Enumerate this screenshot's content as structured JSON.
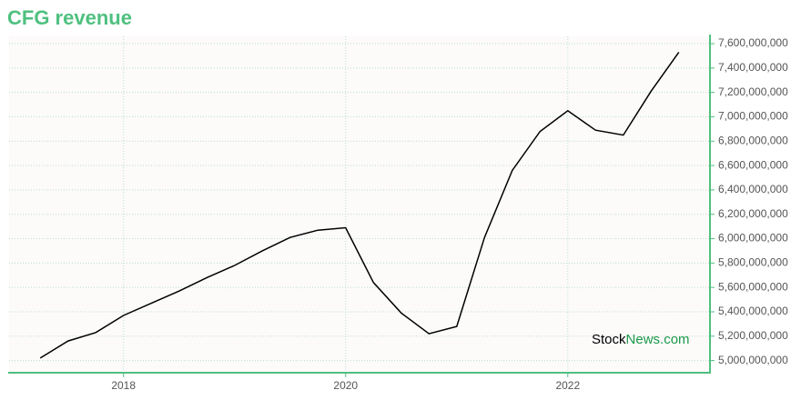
{
  "chart_data": {
    "type": "line",
    "title": "CFG revenue",
    "x": [
      2017.25,
      2017.5,
      2017.75,
      2018,
      2018.25,
      2018.5,
      2018.75,
      2019,
      2019.25,
      2019.5,
      2019.75,
      2020,
      2020.25,
      2020.5,
      2020.75,
      2021,
      2021.25,
      2021.5,
      2021.75,
      2022,
      2022.25,
      2022.5,
      2022.75,
      2023
    ],
    "series": [
      {
        "color": "#000000",
        "values": [
          5020000000,
          5160000000,
          5230000000,
          5370000000,
          5470000000,
          5570000000,
          5680000000,
          5780000000,
          5900000000,
          6010000000,
          6070000000,
          6090000000,
          5640000000,
          5390000000,
          5220000000,
          5280000000,
          6010000000,
          6560000000,
          6880000000,
          7050000000,
          6890000000,
          6850000000,
          7210000000,
          7530000000
        ]
      }
    ],
    "xlim": [
      2016.97,
      2023.28
    ],
    "xticks": [
      2018,
      2020,
      2022
    ],
    "ylim": [
      4900000000,
      7660000000
    ],
    "yticks": [
      {
        "value": 5000000000,
        "label": "5,000,000,000"
      },
      {
        "value": 5200000000,
        "label": "5,200,000,000"
      },
      {
        "value": 5400000000,
        "label": "5,400,000,000"
      },
      {
        "value": 5600000000,
        "label": "5,600,000,000"
      },
      {
        "value": 5800000000,
        "label": "5,800,000,000"
      },
      {
        "value": 6000000000,
        "label": "6,000,000,000"
      },
      {
        "value": 6200000000,
        "label": "6,200,000,000"
      },
      {
        "value": 6400000000,
        "label": "6,400,000,000"
      },
      {
        "value": 6600000000,
        "label": "6,600,000,000"
      },
      {
        "value": 6800000000,
        "label": "6,800,000,000"
      },
      {
        "value": 7000000000,
        "label": "7,000,000,000"
      },
      {
        "value": 7200000000,
        "label": "7,200,000,000"
      },
      {
        "value": 7400000000,
        "label": "7,400,000,000"
      },
      {
        "value": 7600000000,
        "label": "7,600,000,000"
      }
    ],
    "grid": true,
    "watermark": [
      "Stock",
      "News.com"
    ]
  }
}
